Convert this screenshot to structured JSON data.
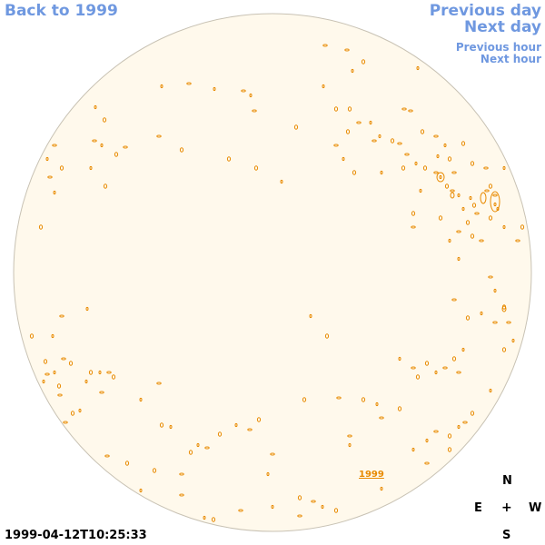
{
  "nav": {
    "back": "Back to 1999",
    "previous_day": "Previous day",
    "next_day": "Next day",
    "previous_hour": "Previous hour",
    "next_hour": "Next hour"
  },
  "compass": {
    "north": "N",
    "south": "S",
    "east": "E",
    "west": "W",
    "center": "+"
  },
  "timestamp": "1999-04-12T10:25:33",
  "year_label": "1999",
  "colors": {
    "disk_fill": "#fff9ec",
    "disk_border": "#c8c2b4",
    "feature": "#e88a00",
    "link": "#6f98e0"
  }
}
